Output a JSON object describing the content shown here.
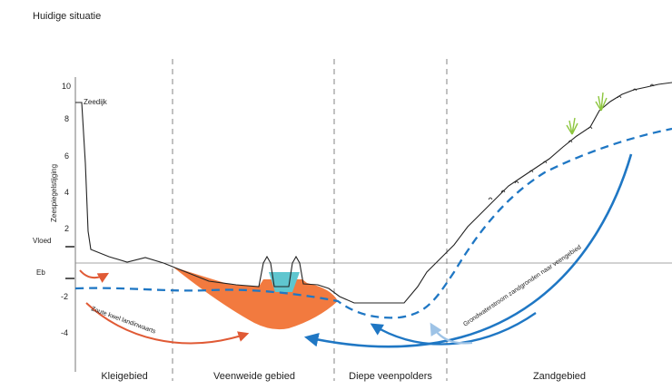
{
  "title": "Huidige situatie",
  "y_axis": {
    "label": "Zeespiegelstijging",
    "ticks": [
      "10",
      "8",
      "6",
      "4",
      "2",
      "-2",
      "-4"
    ],
    "vloed_label": "Vloed",
    "eb_label": "Eb"
  },
  "annotations": {
    "zeedijk": "Zeedijk",
    "zoute_kwel": "Zoute kwel landinwaarts",
    "grondwater": "Grondwaterstroom zandgronden naar veengebied"
  },
  "regions": [
    "Kleigebied",
    "Veenweide gebied",
    "Diepe veenpolders",
    "Zandgebied"
  ],
  "colors": {
    "peat": "#f27a3f",
    "saltwater_arrow": "#e05a35",
    "groundwater_arrow": "#1f77c4",
    "groundwater_arrow_light": "#9ec3e6",
    "water_table_dash": "#1f77c4",
    "ditch_water": "#5fc6cf",
    "grass": "#8dc63f"
  }
}
